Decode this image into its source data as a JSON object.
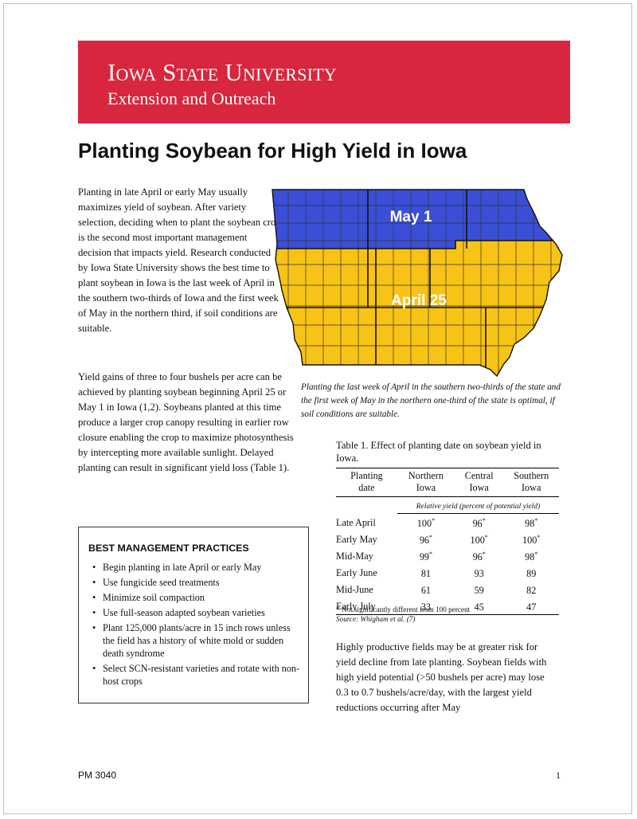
{
  "banner": {
    "university": "Iowa State University",
    "unit": "Extension and Outreach"
  },
  "title": "Planting Soybean for High Yield in Iowa",
  "paragraphs": [
    "Planting in late April or early May usually maximizes yield of soybean. After variety selection, deciding when to plant the soybean crop is the second most important management decision that impacts yield. Research conducted by Iowa State University shows the best time to plant soybean in Iowa is the last week of April in the southern two-thirds of Iowa and the first week of May in the northern third, if soil conditions are suitable.",
    "Yield gains of three to four bushels per acre can be achieved by planting soybean beginning April 25 or May 1 in Iowa (1,2). Soybeans planted at this time produce a larger crop canopy resulting in earlier row closure enabling the crop to maximize photosynthesis by intercepting more available sunlight. Delayed planting can result in significant yield loss (Table 1).",
    "Highly productive fields may be at greater risk for yield decline from late planting. Soybean fields with high yield potential (>50 bushels per acre) may lose 0.3 to 0.7 bushels/acre/day, with the largest yield reductions occurring after May"
  ],
  "map": {
    "north_label": "May 1",
    "south_label": "April 25",
    "north_color": "#3a4fd6",
    "south_color": "#f7c316",
    "caption": "Planting the last week of April in the southern two-thirds of the state and the first week of May in the northern one-third of the state is optimal, if soil conditions are suitable."
  },
  "bmp": {
    "heading": "BEST MANAGEMENT PRACTICES",
    "bullet": "•",
    "items": [
      "Begin planting in late April or early May",
      "Use fungicide seed treatments",
      "Minimize soil compaction",
      "Use full-season adapted soybean varieties",
      "Plant 125,000 plants/acre in 15 inch rows unless the field has a history of white mold or sudden death syndrome",
      "Select SCN-resistant varieties and rotate with non-host crops"
    ]
  },
  "table": {
    "title": "Table 1. Effect of planting date on soybean yield in Iowa.",
    "headers": [
      "Planting date",
      "Northern Iowa",
      "Central Iowa",
      "Southern Iowa"
    ],
    "subheader": "Relative yield (percent of potential yield)",
    "star": "*",
    "rows": [
      {
        "date": "Late April",
        "n": "100",
        "ns": "*",
        "c": "96",
        "cs": "*",
        "s": "98",
        "ss": "*"
      },
      {
        "date": "Early May",
        "n": "96",
        "ns": "*",
        "c": "100",
        "cs": "*",
        "s": "100",
        "ss": "*"
      },
      {
        "date": "Mid-May",
        "n": "99",
        "ns": "*",
        "c": "96",
        "cs": "*",
        "s": "98",
        "ss": "*"
      },
      {
        "date": "Early June",
        "n": "81",
        "ns": "",
        "c": "93",
        "cs": "",
        "s": "89",
        "ss": ""
      },
      {
        "date": "Mid-June",
        "n": "61",
        "ns": "",
        "c": "59",
        "cs": "",
        "s": "82",
        "ss": ""
      },
      {
        "date": "Early July",
        "n": "33",
        "ns": "",
        "c": "45",
        "cs": "",
        "s": "47",
        "ss": ""
      }
    ],
    "note": "* Not significantly different from 100 percent",
    "source": "Source: Whigham et al. (7)"
  },
  "footer": {
    "code": "PM 3040",
    "page": "1"
  }
}
